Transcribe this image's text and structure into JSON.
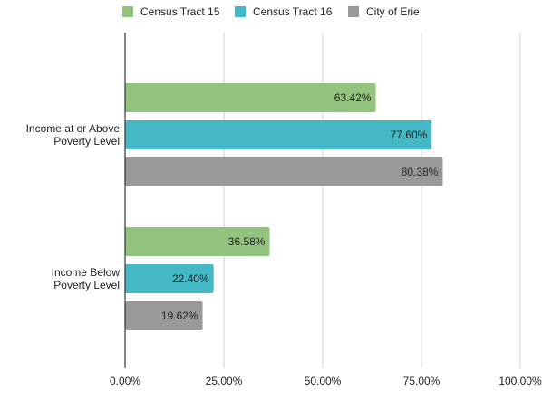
{
  "chart_data": {
    "type": "bar",
    "orientation": "horizontal",
    "categories": [
      "Income at or Above Poverty Level",
      "Income Below Poverty Level"
    ],
    "category_label_lines": [
      [
        "Income at or Above",
        "Poverty Level"
      ],
      [
        "Income Below",
        "Poverty Level"
      ]
    ],
    "series": [
      {
        "name": "Census Tract 15",
        "values": [
          63.42,
          36.58
        ],
        "labels": [
          "63.42%",
          "36.58%"
        ],
        "color": "#93c47d"
      },
      {
        "name": "Census Tract 16",
        "values": [
          77.6,
          22.4
        ],
        "labels": [
          "77.60%",
          "22.40%"
        ],
        "color": "#45b8c5"
      },
      {
        "name": "City of Erie",
        "values": [
          80.38,
          19.62
        ],
        "labels": [
          "80.38%",
          "19.62%"
        ],
        "color": "#999999"
      }
    ],
    "xlim": [
      0,
      100
    ],
    "xticks": [
      0,
      25,
      50,
      75,
      100
    ],
    "xtick_labels": [
      "0.00%",
      "25.00%",
      "50.00%",
      "75.00%",
      "100.00%"
    ],
    "grid": true,
    "legend_position": "top-center",
    "title": "",
    "xlabel": "",
    "ylabel": ""
  }
}
